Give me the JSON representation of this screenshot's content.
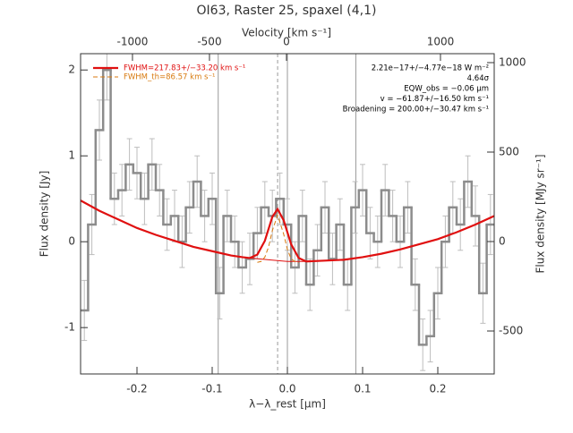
{
  "chart_data": {
    "type": "step",
    "title": "OI63, Raster 25, spaxel (4,1)",
    "xlabel": "λ−λ_rest [μm]",
    "x2label": "Velocity [km s⁻¹]",
    "ylabel": "Flux density [Jy]",
    "y2label": "Flux density [MJy sr⁻¹]",
    "color": "#8c8c8c",
    "error_color": "#bdbdbd",
    "x": [
      -0.27,
      -0.26,
      -0.25,
      -0.24,
      -0.23,
      -0.22,
      -0.21,
      -0.2,
      -0.19,
      -0.18,
      -0.17,
      -0.16,
      -0.15,
      -0.14,
      -0.13,
      -0.12,
      -0.11,
      -0.1,
      -0.09,
      -0.08,
      -0.07,
      -0.06,
      -0.05,
      -0.04,
      -0.03,
      -0.02,
      -0.01,
      0,
      0.01,
      0.02,
      0.03,
      0.04,
      0.05,
      0.06,
      0.07,
      0.08,
      0.09,
      0.1,
      0.11,
      0.12,
      0.13,
      0.14,
      0.15,
      0.16,
      0.17,
      0.18,
      0.19,
      0.2,
      0.21,
      0.22,
      0.23,
      0.24,
      0.25,
      0.26,
      0.27
    ],
    "values": [
      -0.8,
      0.2,
      1.3,
      2.0,
      0.5,
      0.6,
      0.9,
      0.8,
      0.5,
      0.9,
      0.6,
      0.2,
      0.3,
      0.0,
      0.4,
      0.7,
      0.3,
      0.5,
      -0.6,
      0.3,
      0.0,
      -0.3,
      -0.2,
      0.1,
      0.4,
      0.3,
      0.5,
      0.2,
      -0.3,
      0.3,
      -0.5,
      -0.1,
      0.4,
      -0.2,
      0.2,
      -0.5,
      0.4,
      0.6,
      0.1,
      0.0,
      0.6,
      0.3,
      0.0,
      0.4,
      -0.5,
      -1.2,
      -1.1,
      -0.6,
      0.0,
      0.4,
      0.2,
      0.7,
      0.3,
      -0.6,
      0.2
    ],
    "errors": [
      0.35,
      0.35,
      0.35,
      0.35,
      0.3,
      0.3,
      0.3,
      0.3,
      0.3,
      0.3,
      0.3,
      0.3,
      0.3,
      0.3,
      0.3,
      0.3,
      0.3,
      0.3,
      0.3,
      0.3,
      0.3,
      0.3,
      0.3,
      0.3,
      0.3,
      0.3,
      0.3,
      0.3,
      0.3,
      0.3,
      0.3,
      0.3,
      0.3,
      0.3,
      0.3,
      0.3,
      0.3,
      0.3,
      0.3,
      0.3,
      0.3,
      0.3,
      0.3,
      0.3,
      0.3,
      0.3,
      0.3,
      0.3,
      0.3,
      0.3,
      0.3,
      0.3,
      0.35,
      0.35,
      0.35
    ],
    "xlim": [
      -0.275,
      0.275
    ],
    "xticks": [
      -0.2,
      -0.1,
      {
        "value": 0,
        "label": "0.0"
      },
      0.1,
      0.2
    ],
    "x2lim": [
      -1337,
      1349
    ],
    "x2ticks": [
      -1000,
      -500,
      0,
      1000
    ],
    "ylim": [
      -1.54,
      2.19
    ],
    "yticks": [
      -1,
      0,
      1,
      2
    ],
    "y2lim": [
      -740,
      1050
    ],
    "y2ticks": [
      -500,
      0,
      500,
      1000
    ],
    "vlines": [
      {
        "x": -0.092,
        "color": "#999999",
        "dash": false
      },
      {
        "x": -0.013,
        "color": "#999999",
        "dash": true
      },
      {
        "x": 0,
        "color": "#999999",
        "dash": false
      },
      {
        "x": 0.091,
        "color": "#999999",
        "dash": false
      }
    ],
    "lines": [
      {
        "color": "#e01010",
        "width": 1,
        "x": [
          -0.275,
          -0.25,
          -0.225,
          -0.2,
          -0.175,
          -0.15,
          -0.125,
          -0.1,
          -0.075,
          -0.05,
          -0.025,
          0,
          0.025,
          0.05,
          0.075,
          0.1,
          0.125,
          0.15,
          0.175,
          0.2,
          0.225,
          0.25,
          0.275
        ],
        "values": [
          0.48,
          0.36,
          0.26,
          0.16,
          0.08,
          0.01,
          -0.06,
          -0.11,
          -0.16,
          -0.19,
          -0.21,
          -0.23,
          -0.23,
          -0.22,
          -0.21,
          -0.18,
          -0.14,
          -0.09,
          -0.03,
          0.03,
          0.11,
          0.2,
          0.3
        ]
      },
      {
        "name": "FWHM=217.83+/−33.20 km s⁻¹",
        "color": "#e01010",
        "width": 2.2,
        "x": [
          -0.275,
          -0.25,
          -0.225,
          -0.2,
          -0.175,
          -0.15,
          -0.125,
          -0.1,
          -0.075,
          -0.06,
          -0.05,
          -0.04,
          -0.03,
          -0.02,
          -0.013,
          -0.005,
          0.005,
          0.015,
          0.025,
          0.05,
          0.075,
          0.1,
          0.125,
          0.15,
          0.175,
          0.2,
          0.225,
          0.25,
          0.275
        ],
        "values": [
          0.48,
          0.36,
          0.26,
          0.16,
          0.08,
          0.01,
          -0.06,
          -0.11,
          -0.16,
          -0.18,
          -0.19,
          -0.15,
          0.01,
          0.29,
          0.38,
          0.25,
          -0.03,
          -0.19,
          -0.23,
          -0.22,
          -0.21,
          -0.18,
          -0.14,
          -0.09,
          -0.03,
          0.03,
          0.11,
          0.2,
          0.3
        ]
      },
      {
        "name": "FWHM_th=86.57 km s⁻¹",
        "color": "#d87a10",
        "width": 1,
        "dash": true,
        "x": [
          -0.04,
          -0.035,
          -0.03,
          -0.025,
          -0.02,
          -0.013,
          -0.005,
          0,
          0.005,
          0.01,
          0.015
        ],
        "values": [
          -0.24,
          -0.23,
          -0.18,
          -0.06,
          0.13,
          0.31,
          0.09,
          -0.09,
          -0.2,
          -0.23,
          -0.24
        ]
      }
    ],
    "annotations": [
      "2.21e−17+/−4.77e−18 W m⁻²",
      "4.64σ",
      "EQW_obs = −0.06 μm",
      "v = −61.87+/−16.50 km s⁻¹",
      "Broadening = 200.00+/−30.47 km s⁻¹"
    ]
  }
}
